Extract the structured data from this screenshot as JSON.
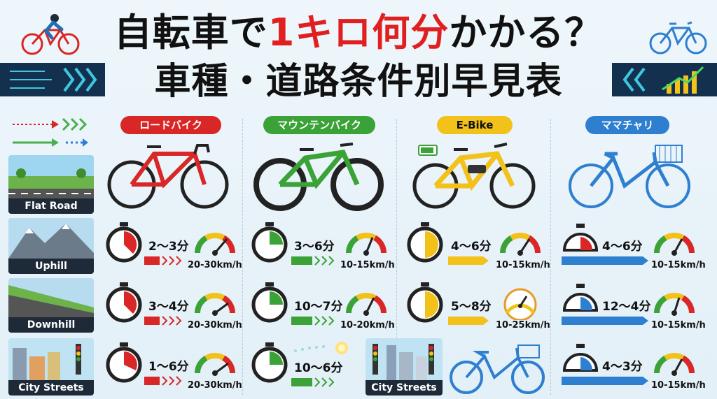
{
  "title": {
    "line1_pre": "自転車で",
    "line1_accent": "1キロ何分",
    "line1_post": "かかる？",
    "line2": "車種・道路条件別早見表"
  },
  "bikes": [
    {
      "label": "ロードバイク",
      "color": "#d92626"
    },
    {
      "label": "マウンテンバイク",
      "color": "#3aa236"
    },
    {
      "label": "E-Bike",
      "color": "#f2c11a"
    },
    {
      "label": "ママチャリ",
      "color": "#2e7fd0"
    }
  ],
  "rows": [
    {
      "label": "Flat Road"
    },
    {
      "label": "Uphill",
      "cells": [
        {
          "time": "2～3分",
          "speed": "20-30km/h"
        },
        {
          "time": "3～6分",
          "speed": "10-15km/h"
        },
        {
          "time": "4～6分",
          "speed": "10-15km/h"
        },
        {
          "time": "4～6分",
          "speed": "10-15km/h"
        }
      ]
    },
    {
      "label": "Downhill",
      "cells": [
        {
          "time": "3～4分",
          "speed": "20-30km/h"
        },
        {
          "time": "10～7分",
          "speed": "10-20km/h"
        },
        {
          "time": "5～8分",
          "speed": "10-25km/h"
        },
        {
          "time": "12～4分",
          "speed": "10-15km/h"
        }
      ]
    },
    {
      "label": "City Streets",
      "cells": [
        {
          "time": "1～6分",
          "speed": "20-30km/h"
        },
        {
          "time": "10～6分",
          "speed": ""
        },
        {
          "time": "",
          "speed": "",
          "overlay_label": "City Streets"
        },
        {
          "time": "4～3分",
          "speed": "10-15km/h"
        }
      ]
    }
  ],
  "colors": {
    "text": "#111111",
    "dark_label": "#1f2a38",
    "title_accent": "#e02020"
  }
}
